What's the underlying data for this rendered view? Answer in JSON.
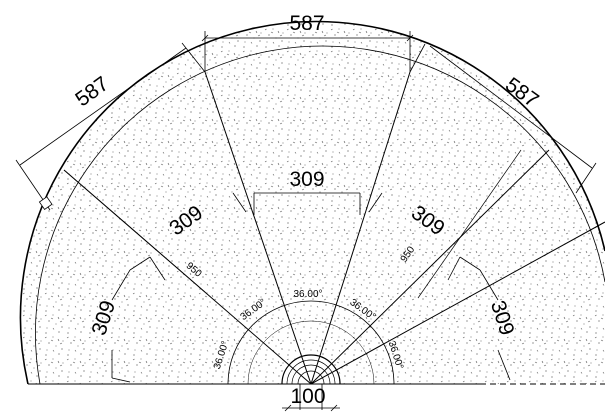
{
  "drawing": {
    "outer_chord_labels": [
      "587",
      "587",
      "587"
    ],
    "inner_chord_labels": [
      "309",
      "309",
      "309",
      "309"
    ],
    "radius_labels": [
      "950",
      "950"
    ],
    "angle_labels": [
      "36.00°",
      "36.00°",
      "36.00°",
      "36.00°",
      "36.00°"
    ],
    "center_width_label": "100"
  }
}
